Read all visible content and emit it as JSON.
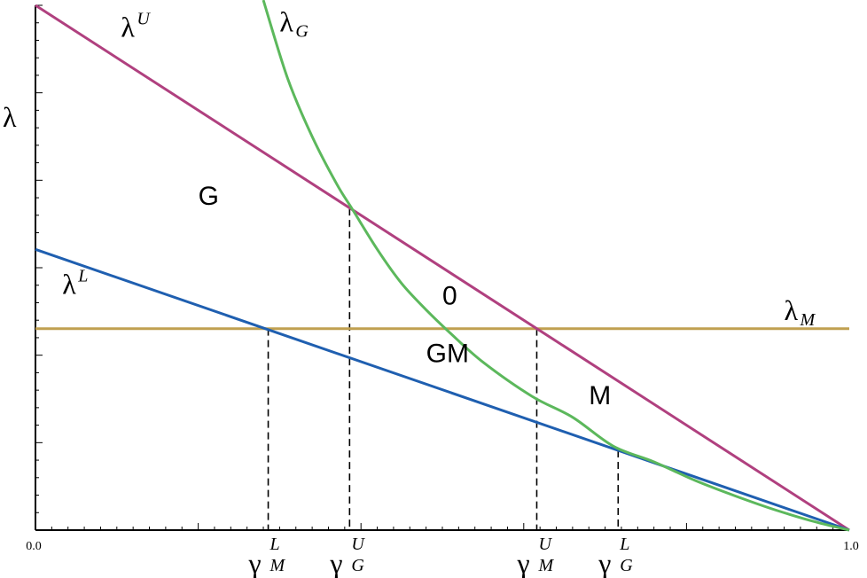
{
  "chart_data": {
    "type": "line",
    "xlim": [
      0.0,
      1.0
    ],
    "ylim": [
      0,
      1
    ],
    "ylabel": "λ",
    "x_tick_labels": [
      "0.0",
      "1.0"
    ],
    "grid": false,
    "series": [
      {
        "name": "λU",
        "symbol": "λ",
        "sup": "U",
        "color": "#b0407f",
        "x": [
          0.0,
          1.0
        ],
        "y": [
          1.0,
          0.0
        ]
      },
      {
        "name": "λL",
        "symbol": "λ",
        "sup": "L",
        "color": "#1f5fb0",
        "x": [
          0.0,
          1.0
        ],
        "y": [
          0.535,
          0.0
        ]
      },
      {
        "name": "λM",
        "symbol": "λ",
        "sub": "M",
        "color": "#c0a050",
        "x": [
          0.0,
          1.0
        ],
        "y": [
          0.384,
          0.384
        ]
      },
      {
        "name": "λG",
        "symbol": "λ",
        "sub": "G",
        "color": "#5cb85c",
        "x": [
          0.28,
          0.31,
          0.34,
          0.37,
          0.39,
          0.42,
          0.45,
          0.48,
          0.51,
          0.55,
          0.61,
          0.66,
          0.71,
          0.76,
          0.81,
          0.86,
          0.91,
          0.96,
          1.0
        ],
        "y": [
          1.01,
          0.86,
          0.75,
          0.66,
          0.61,
          0.535,
          0.47,
          0.42,
          0.375,
          0.32,
          0.255,
          0.215,
          0.16,
          0.13,
          0.095,
          0.065,
          0.038,
          0.015,
          0.0
        ]
      }
    ],
    "gamma_markers": [
      {
        "label": "γ",
        "sub": "M",
        "sup": "L",
        "x": 0.286,
        "y": 0.384
      },
      {
        "label": "γ",
        "sub": "G",
        "sup": "U",
        "x": 0.386,
        "y": 0.613
      },
      {
        "label": "γ",
        "sub": "M",
        "sup": "U",
        "x": 0.616,
        "y": 0.384
      },
      {
        "label": "γ",
        "sub": "G",
        "sup": "L",
        "x": 0.716,
        "y": 0.152
      }
    ],
    "regions": [
      {
        "label": "G",
        "x": 0.2,
        "y": 0.62
      },
      {
        "label": "0",
        "x": 0.5,
        "y": 0.43
      },
      {
        "label": "GM",
        "x": 0.48,
        "y": 0.32
      },
      {
        "label": "M",
        "x": 0.68,
        "y": 0.24
      }
    ],
    "curve_label_positions": {
      "λU": {
        "x": 0.105,
        "y": 0.94
      },
      "λG": {
        "x": 0.3,
        "y": 0.95
      },
      "λL": {
        "x": 0.033,
        "y": 0.45
      },
      "λM": {
        "x": 0.92,
        "y": 0.4
      }
    }
  }
}
